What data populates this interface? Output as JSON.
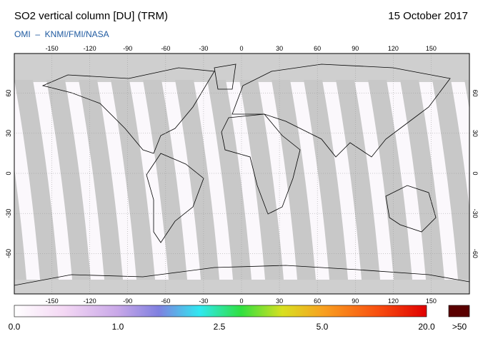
{
  "header": {
    "title": "SO2 vertical column [DU] (TRM)",
    "date": "15 October 2017",
    "source": "OMI  –  KNMI/FMI/NASA"
  },
  "map": {
    "lon_ticks": [
      -150,
      -120,
      -90,
      -60,
      -30,
      0,
      30,
      60,
      90,
      120,
      150
    ],
    "lat_ticks": [
      60,
      30,
      0,
      -30,
      -60
    ]
  },
  "colorbar": {
    "labels": [
      "0.0",
      "1.0",
      "2.5",
      "5.0",
      "20.0",
      ">50"
    ]
  }
}
